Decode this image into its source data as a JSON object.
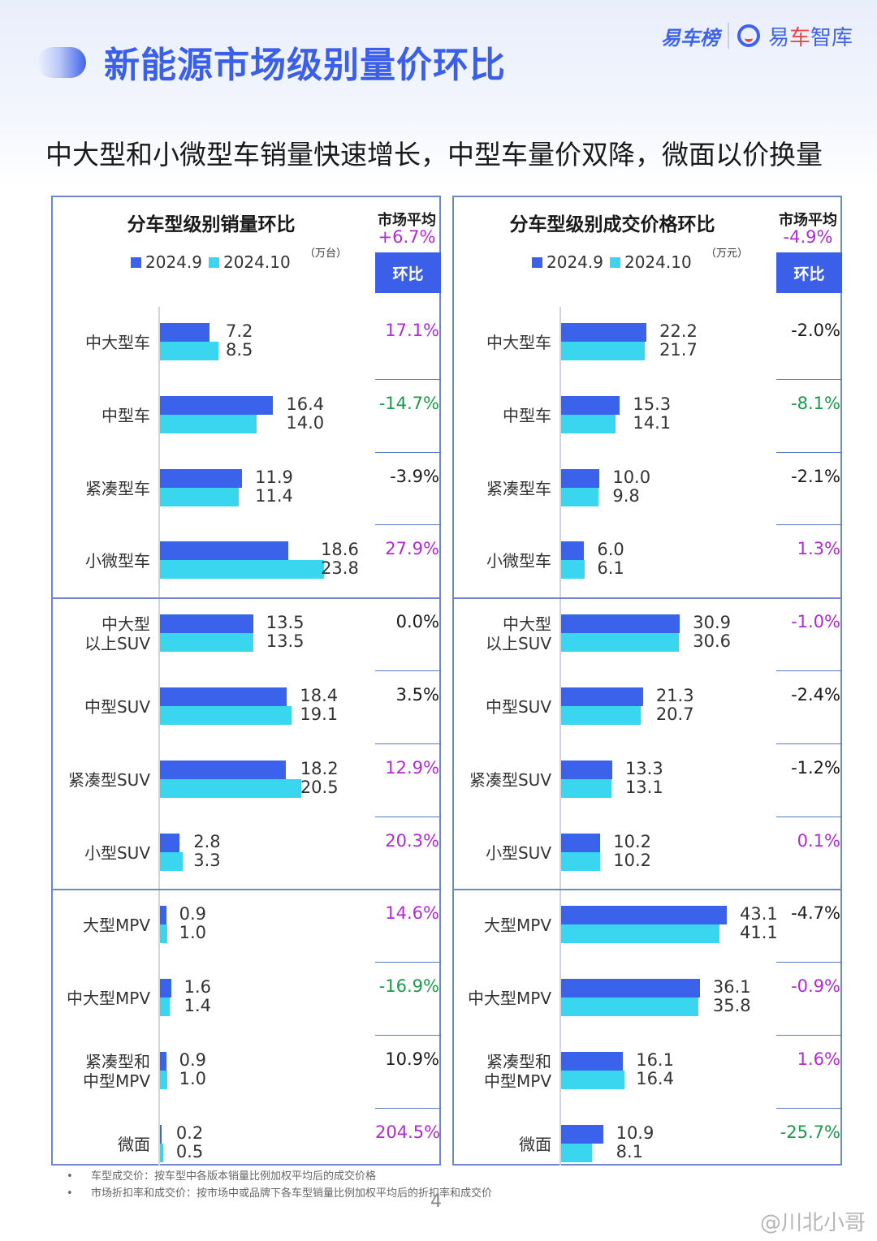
{
  "header": {
    "title": "新能源市场级别量价环比",
    "logo_primary": "易车榜",
    "logo_secondary_pre": "易",
    "logo_secondary_red": "车",
    "logo_secondary_post": "智库"
  },
  "subtitle": "中大型和小微型车销量快速增长，中型车量价双降，微面以价换量",
  "legend": {
    "a": "2024.9",
    "b": "2024.10"
  },
  "colors": {
    "a": "#3a62ea",
    "b": "#3ad6ef",
    "positive": "#b02ad8",
    "negative": "#1a9a4a",
    "neutral": "#1a1a1a",
    "accent": "#3b5fe8"
  },
  "chart_data": [
    {
      "type": "bar",
      "title": "分车型级别销量环比",
      "unit": "（万台）",
      "avg_label": "市场平均",
      "avg_value": "+6.7%",
      "change_header": "环比",
      "xlim": [
        0,
        24
      ],
      "categories": [
        "中大型车",
        "中型车",
        "紧凑型车",
        "小微型车",
        "中大型\n以上SUV",
        "中型SUV",
        "紧凑型SUV",
        "小型SUV",
        "大型MPV",
        "中大型MPV",
        "紧凑型和\n中型MPV",
        "微面"
      ],
      "series": [
        {
          "name": "2024.9",
          "values": [
            7.2,
            16.4,
            11.9,
            18.6,
            13.5,
            18.4,
            18.2,
            2.8,
            0.9,
            1.6,
            0.9,
            0.2
          ],
          "labels": [
            "7.2",
            "16.4",
            "11.9",
            "18.6",
            "13.5",
            "18.4",
            "18.2",
            "2.8",
            "0.9",
            "1.6",
            "0.9",
            "0.2"
          ]
        },
        {
          "name": "2024.10",
          "values": [
            8.5,
            14.0,
            11.4,
            23.8,
            13.5,
            19.1,
            20.5,
            3.3,
            1.0,
            1.4,
            1.0,
            0.5
          ],
          "labels": [
            "8.5",
            "14.0",
            "11.4",
            "23.8",
            "13.5",
            "19.1",
            "20.5",
            "3.3",
            "1.0",
            "1.4",
            "1.0",
            "0.5"
          ]
        }
      ],
      "changes": [
        "17.1%",
        "-14.7%",
        "-3.9%",
        "27.9%",
        "0.0%",
        "3.5%",
        "12.9%",
        "20.3%",
        "14.6%",
        "-16.9%",
        "10.9%",
        "204.5%"
      ],
      "change_colors": [
        "pos",
        "neg",
        "neu",
        "pos",
        "neu",
        "neu",
        "pos",
        "pos",
        "pos",
        "neg",
        "neu",
        "pos"
      ]
    },
    {
      "type": "bar",
      "title": "分车型级别成交价格环比",
      "unit": "（万元）",
      "avg_label": "市场平均",
      "avg_value": "-4.9%",
      "change_header": "环比",
      "xlim": [
        0,
        43.1
      ],
      "categories": [
        "中大型车",
        "中型车",
        "紧凑型车",
        "小微型车",
        "中大型\n以上SUV",
        "中型SUV",
        "紧凑型SUV",
        "小型SUV",
        "大型MPV",
        "中大型MPV",
        "紧凑型和\n中型MPV",
        "微面"
      ],
      "series": [
        {
          "name": "2024.9",
          "values": [
            22.2,
            15.3,
            10.0,
            6.0,
            30.9,
            21.3,
            13.3,
            10.2,
            43.1,
            36.1,
            16.1,
            10.9
          ],
          "labels": [
            "22.2",
            "15.3",
            "10.0",
            "6.0",
            "30.9",
            "21.3",
            "13.3",
            "10.2",
            "43.1",
            "36.1",
            "16.1",
            "10.9"
          ]
        },
        {
          "name": "2024.10",
          "values": [
            21.7,
            14.1,
            9.8,
            6.1,
            30.6,
            20.7,
            13.1,
            10.2,
            41.1,
            35.8,
            16.4,
            8.1
          ],
          "labels": [
            "21.7",
            "14.1",
            "9.8",
            "6.1",
            "30.6",
            "20.7",
            "13.1",
            "10.2",
            "41.1",
            "35.8",
            "16.4",
            "8.1"
          ]
        }
      ],
      "changes": [
        "-2.0%",
        "-8.1%",
        "-2.1%",
        "1.3%",
        "-1.0%",
        "-2.4%",
        "-1.2%",
        "0.1%",
        "-4.7%",
        "-0.9%",
        "1.6%",
        "-25.7%"
      ],
      "change_colors": [
        "neu",
        "neg",
        "neu",
        "pos",
        "pos",
        "neu",
        "neu",
        "pos",
        "neu",
        "pos",
        "pos",
        "neg"
      ]
    }
  ],
  "footnotes": [
    "车型成交价：按车型中各版本销量比例加权平均后的成交价格",
    "市场折扣率和成交价：按市场中或品牌下各车型销量比例加权平均后的折扣率和成交价"
  ],
  "page_number": "4",
  "watermark": "@川北小哥"
}
